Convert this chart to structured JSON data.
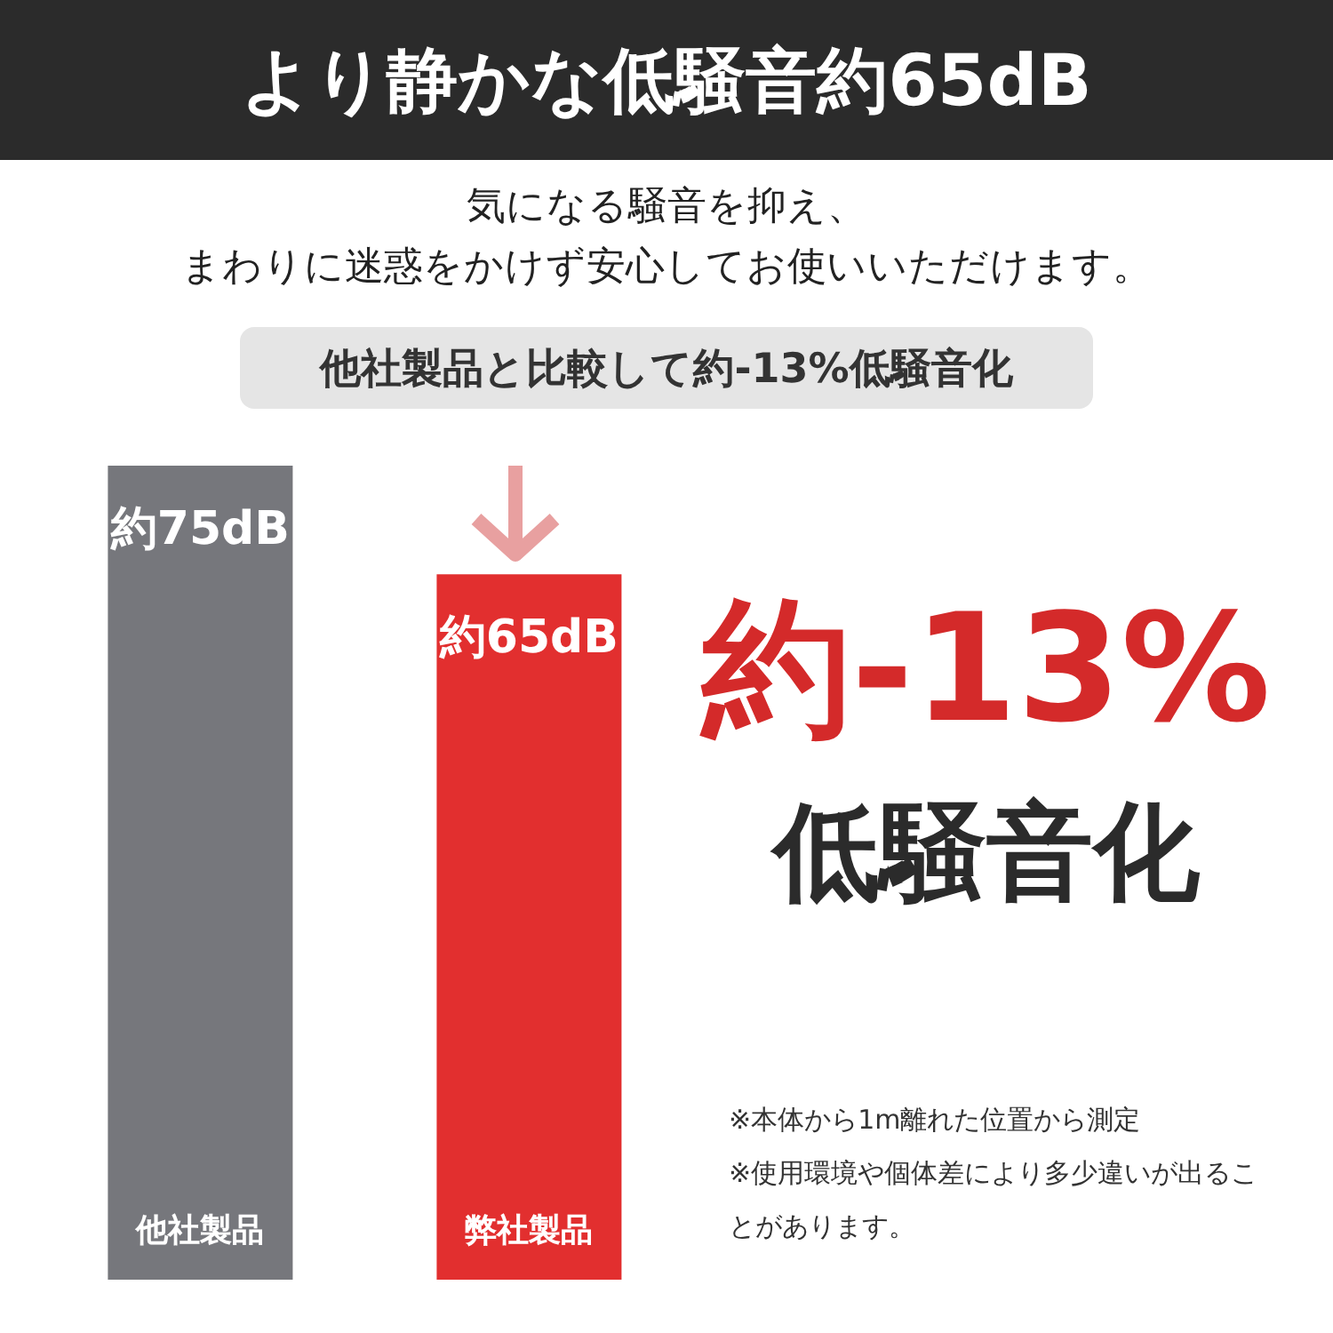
{
  "chart_data": {
    "type": "bar",
    "title": "より静かな低騒音約65dB",
    "subtitle": "気になる騒音を抑え、まわりに迷惑をかけず安心してお使いいただけます。",
    "categories": [
      "他社製品",
      "弊社製品"
    ],
    "values": [
      75,
      65
    ],
    "colors": [
      "#76777c",
      "#e22f2f"
    ],
    "value_labels": [
      "約75dB",
      "約65dB"
    ],
    "annotations": [
      "他社製品と比較して約-13%低騒音化",
      "約-13%",
      "低騒音化",
      "※本体から1m離れた位置から測定",
      "※使用環境や個体差により多少違いが出ることがあります。"
    ]
  }
}
